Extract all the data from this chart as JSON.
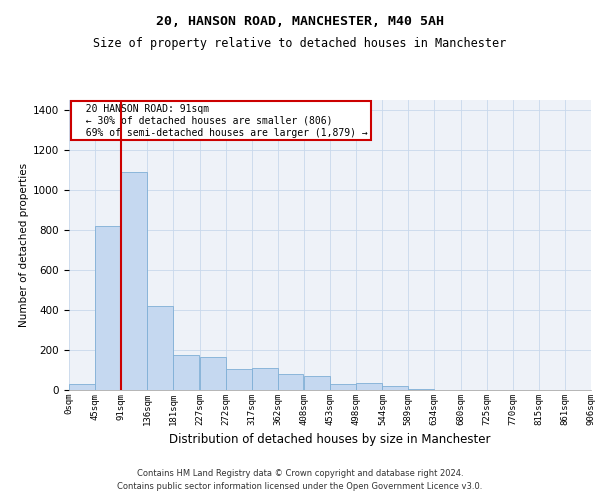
{
  "title": "20, HANSON ROAD, MANCHESTER, M40 5AH",
  "subtitle": "Size of property relative to detached houses in Manchester",
  "xlabel": "Distribution of detached houses by size in Manchester",
  "ylabel": "Number of detached properties",
  "footnote1": "Contains HM Land Registry data © Crown copyright and database right 2024.",
  "footnote2": "Contains public sector information licensed under the Open Government Licence v3.0.",
  "property_label": "20 HANSON ROAD: 91sqm",
  "annotation_line1": "← 30% of detached houses are smaller (806)",
  "annotation_line2": "69% of semi-detached houses are larger (1,879) →",
  "property_sqm": 91,
  "bar_color": "#c5d8f0",
  "bar_edge_color": "#7fafd6",
  "line_color": "#cc0000",
  "annotation_box_color": "#cc0000",
  "ylim": [
    0,
    1450
  ],
  "yticks": [
    0,
    200,
    400,
    600,
    800,
    1000,
    1200,
    1400
  ],
  "bin_labels": [
    "0sqm",
    "45sqm",
    "91sqm",
    "136sqm",
    "181sqm",
    "227sqm",
    "272sqm",
    "317sqm",
    "362sqm",
    "408sqm",
    "453sqm",
    "498sqm",
    "544sqm",
    "589sqm",
    "634sqm",
    "680sqm",
    "725sqm",
    "770sqm",
    "815sqm",
    "861sqm",
    "906sqm"
  ],
  "bin_edges": [
    0,
    45,
    91,
    136,
    181,
    227,
    272,
    317,
    362,
    408,
    453,
    498,
    544,
    589,
    634,
    680,
    725,
    770,
    815,
    861,
    906
  ],
  "bar_heights": [
    30,
    820,
    1090,
    420,
    175,
    165,
    105,
    110,
    80,
    70,
    30,
    35,
    20,
    5,
    2,
    1,
    1,
    0,
    0,
    0
  ],
  "background_color": "#eef2f8"
}
